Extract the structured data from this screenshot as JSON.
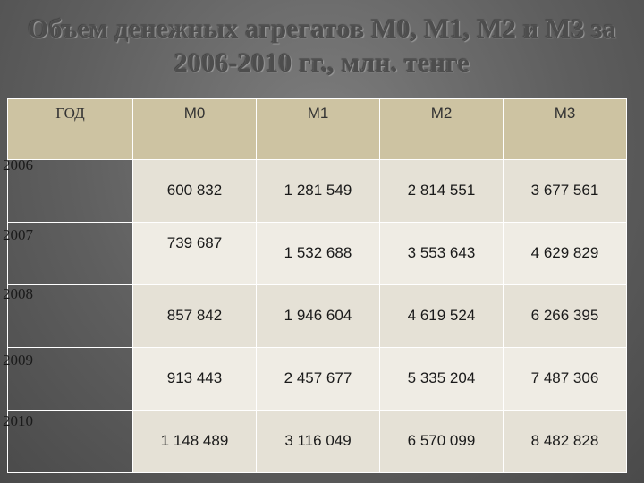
{
  "title": {
    "line1": "Объем денежных агрегатов М0, М1, М2 и М3 за",
    "line2": "2006-2010 гг., млн. тенге"
  },
  "table": {
    "headers": [
      "ГОД",
      "М0",
      "М1",
      "М2",
      "М3"
    ],
    "rows": [
      {
        "year": "2006",
        "m0": "600 832",
        "m1": "1 281 549",
        "m2": "2 814 551",
        "m3": "3 677 561"
      },
      {
        "year": "2007",
        "m0": "739 687",
        "m1": "1 532 688",
        "m2": "3 553 643",
        "m3": "4 629 829"
      },
      {
        "year": "2008",
        "m0": "857 842",
        "m1": "1 946 604",
        "m2": "4 619 524",
        "m3": "6 266 395"
      },
      {
        "year": "2009",
        "m0": "913 443",
        "m1": "2 457 677",
        "m2": "5 335 204",
        "m3": "7 487 306"
      },
      {
        "year": "2010",
        "m0": "1 148 489",
        "m1": "3 116 049",
        "m2": "6 570 099",
        "m3": "8 482 828"
      }
    ]
  },
  "colors": {
    "header_bg": "#cdc3a2",
    "row_bg": "#eae6dc",
    "background": "#6b6b6b"
  }
}
